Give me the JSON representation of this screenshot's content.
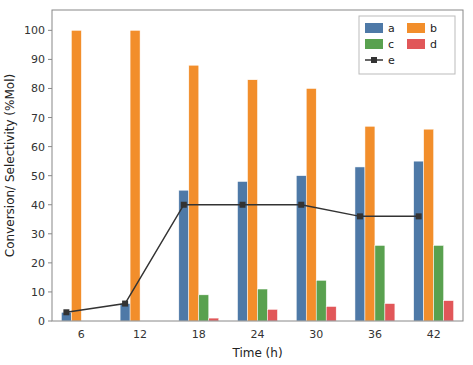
{
  "chart_data": {
    "type": "bar",
    "xlabel": "Time (h)",
    "ylabel": "Conversion/ Selectivity (%Mol)",
    "categories": [
      "6",
      "12",
      "18",
      "24",
      "30",
      "36",
      "42"
    ],
    "series": [
      {
        "name": "a",
        "type": "bar",
        "values": [
          3,
          6,
          45,
          48,
          50,
          53,
          55
        ]
      },
      {
        "name": "b",
        "type": "bar",
        "values": [
          100,
          100,
          88,
          83,
          80,
          67,
          66
        ]
      },
      {
        "name": "c",
        "type": "bar",
        "values": [
          0,
          0,
          9,
          11,
          14,
          26,
          26
        ]
      },
      {
        "name": "d",
        "type": "bar",
        "values": [
          0,
          0,
          1,
          4,
          5,
          6,
          7
        ]
      },
      {
        "name": "e",
        "type": "line",
        "marker": "square",
        "values": [
          3,
          6,
          40,
          40,
          40,
          36,
          36
        ]
      }
    ],
    "ylim": [
      0,
      107
    ],
    "yticks": [
      0,
      10,
      20,
      30,
      40,
      50,
      60,
      70,
      80,
      90,
      100
    ],
    "grid": false,
    "legend": "upper right"
  }
}
